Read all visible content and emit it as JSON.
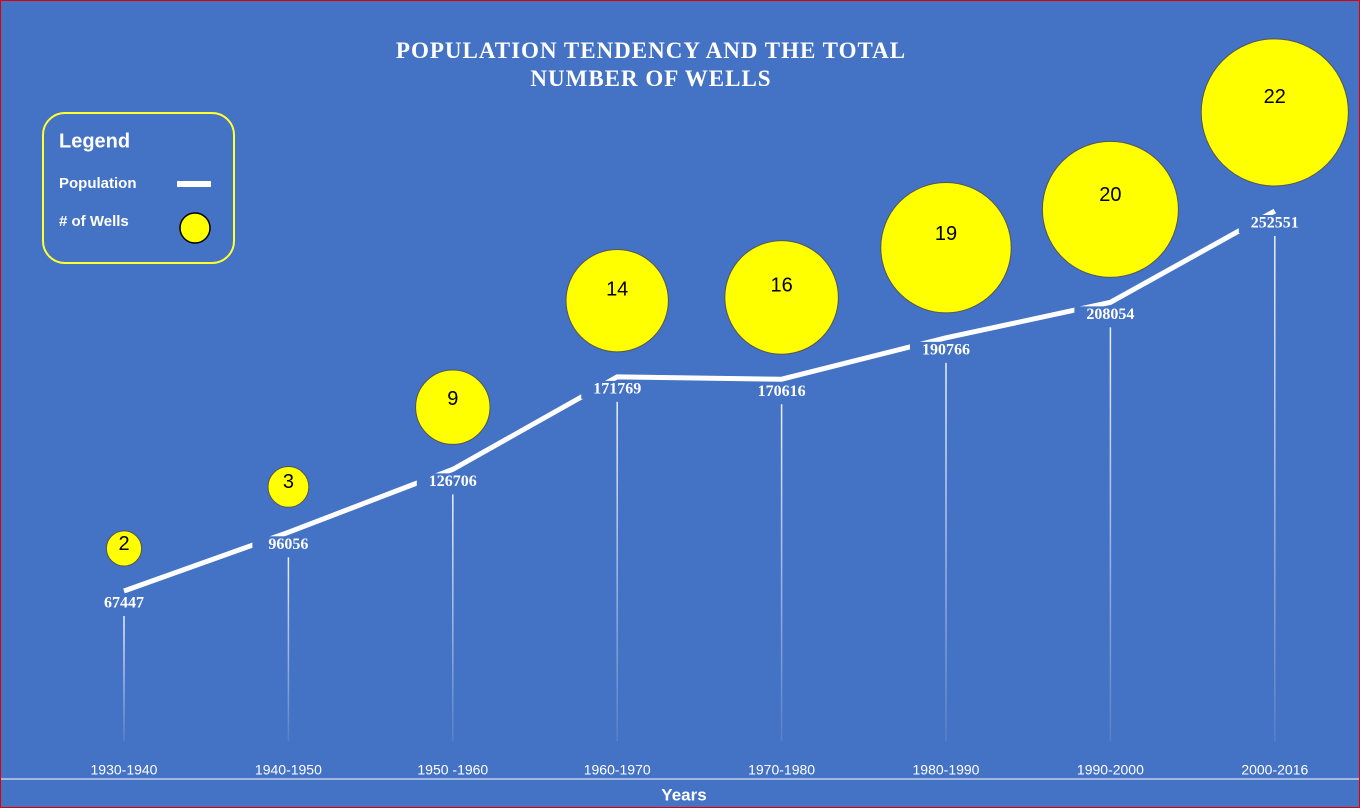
{
  "chart_data": {
    "type": "line",
    "title": "POPULATION TENDENCY AND THE TOTAL NUMBER OF WELLS",
    "x_label": "Years",
    "legend_title": "Legend",
    "legend": "top-left",
    "categories": [
      "1930-1940",
      "1940-1950",
      "1950 -1960",
      "1960-1970",
      "1970-1980",
      "1980-1990",
      "1990-2000",
      "2000-2016"
    ],
    "series": [
      {
        "name": "Population",
        "color": "#ffffff",
        "values": [
          67447,
          96056,
          126706,
          171769,
          170616,
          190766,
          208054,
          252551
        ]
      },
      {
        "name": "# of Wells",
        "color": "#ffff00",
        "values": [
          2,
          3,
          9,
          14,
          16,
          19,
          20,
          22
        ]
      }
    ]
  }
}
